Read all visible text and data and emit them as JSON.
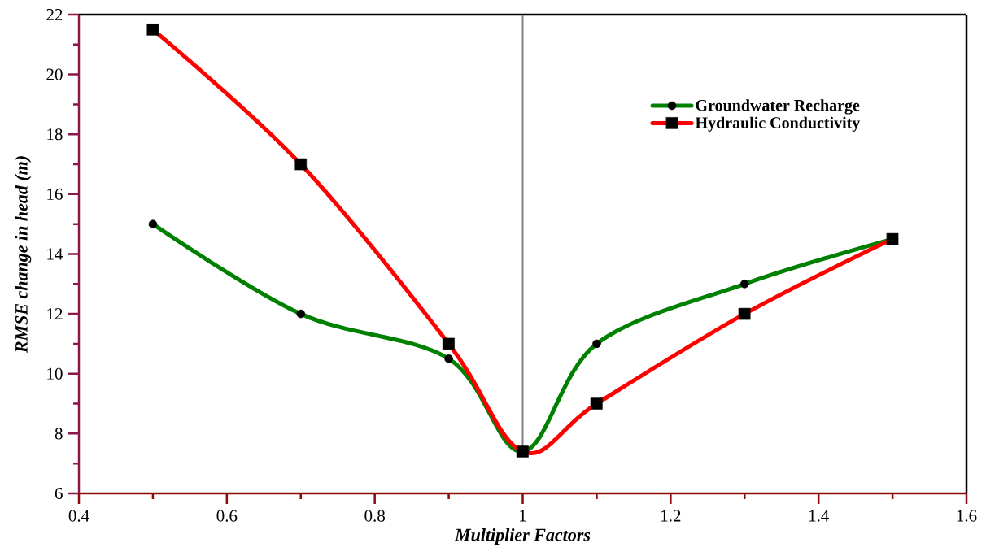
{
  "chart_data": {
    "type": "line",
    "xlabel": "Multiplier Factors",
    "ylabel": "RMSE change in head (m)",
    "x": [
      0.5,
      0.7,
      0.9,
      1,
      1.1,
      1.3,
      1.5
    ],
    "series": [
      {
        "name": "Groundwater Recharge",
        "color": "#008000",
        "marker": "circle",
        "values": [
          15,
          12,
          10.5,
          7.4,
          11,
          13,
          14.5
        ]
      },
      {
        "name": "Hydraulic Conductivity",
        "color": "#ff0000",
        "marker": "square",
        "values": [
          21.5,
          17,
          11,
          7.4,
          9,
          12,
          14.5
        ]
      }
    ],
    "xlim": [
      0.4,
      1.6
    ],
    "ylim": [
      6,
      22
    ],
    "xticks": [
      0.4,
      0.6,
      0.8,
      1,
      1.2,
      1.4,
      1.6
    ],
    "yticks": [
      6,
      8,
      10,
      12,
      14,
      16,
      18,
      20,
      22
    ],
    "legend": "top right",
    "ref_lines": [
      {
        "axis": "x",
        "value": 1,
        "color": "#808080"
      }
    ]
  }
}
